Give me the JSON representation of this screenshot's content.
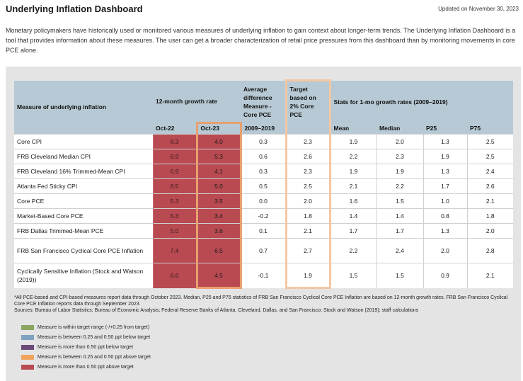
{
  "header": {
    "title": "Underlying Inflation Dashboard",
    "updated": "Updated on November 30, 2023"
  },
  "intro": "Monetary policymakers have historically used or monitored various measures of underlying inflation to gain context about longer-term trends. The Underlying Inflation Dashboard is a tool that provides information about these measures. The user can get a broader characterization of retail price pressures from this dashboard than by monitoring movements in core PCE alone.",
  "table": {
    "col_measure": "Measure of underlying inflation",
    "col_growth": "12-month growth rate",
    "col_avgdiff": "Average difference Measure - Core PCE",
    "col_target": "Target based on 2% Core PCE",
    "col_stats": "Stats for 1-mo growth rates (2009–2019)",
    "sub_oct22": "Oct-22",
    "sub_oct23": "Oct-23",
    "sub_period": "2009–2019",
    "sub_mean": "Mean",
    "sub_median": "Median",
    "sub_p25": "P25",
    "sub_p75": "P75",
    "rows": [
      {
        "name": "Core CPI",
        "oct22": "6.3",
        "oct23": "4.0",
        "avg": "0.3",
        "target": "2.3",
        "mean": "1.9",
        "median": "2.0",
        "p25": "1.3",
        "p75": "2.5"
      },
      {
        "name": "FRB Cleveland Median CPI",
        "oct22": "6.9",
        "oct23": "5.3",
        "avg": "0.6",
        "target": "2.6",
        "mean": "2.2",
        "median": "2.3",
        "p25": "1.9",
        "p75": "2.5"
      },
      {
        "name": "FRB Cleveland 16% Trimmed-Mean CPI",
        "oct22": "6.9",
        "oct23": "4.1",
        "avg": "0.3",
        "target": "2.3",
        "mean": "1.9",
        "median": "1.9",
        "p25": "1.3",
        "p75": "2.4"
      },
      {
        "name": "Atlanta Fed Sticky CPI",
        "oct22": "6.5",
        "oct23": "5.0",
        "avg": "0.5",
        "target": "2.5",
        "mean": "2.1",
        "median": "2.2",
        "p25": "1.7",
        "p75": "2.6"
      },
      {
        "name": "Core PCE",
        "oct22": "5.3",
        "oct23": "3.5",
        "avg": "0.0",
        "target": "2.0",
        "mean": "1.6",
        "median": "1.5",
        "p25": "1.0",
        "p75": "2.1"
      },
      {
        "name": "Market-Based Core PCE",
        "oct22": "5.3",
        "oct23": "3.4",
        "avg": "-0.2",
        "target": "1.8",
        "mean": "1.4",
        "median": "1.4",
        "p25": "0.8",
        "p75": "1.8"
      },
      {
        "name": "FRB Dallas Trimmed-Mean PCE",
        "oct22": "5.0",
        "oct23": "3.6",
        "avg": "0.1",
        "target": "2.1",
        "mean": "1.7",
        "median": "1.7",
        "p25": "1.3",
        "p75": "2.0"
      },
      {
        "name": "FRB San Francisco Cyclical Core PCE Inflation",
        "oct22": "7.4",
        "oct23": "6.5",
        "avg": "0.7",
        "target": "2.7",
        "mean": "2.2",
        "median": "2.4",
        "p25": "2.0",
        "p75": "2.8"
      },
      {
        "name": "Cyclically Sensitive Inflation (Stock and Watson (2019))",
        "oct22": "6.6",
        "oct23": "4.5",
        "avg": "-0.1",
        "target": "1.9",
        "mean": "1.5",
        "median": "1.5",
        "p25": "0.9",
        "p75": "2.1"
      }
    ]
  },
  "notes": {
    "footnote": "*All PCE-based and CPI-based measures report data through October 2023. Median, P25 and P75 statistics of FRB San Francisco Cyclical Core PCE Inflation are based on 12-month growth rates. FRB San Francisco Cyclical Core PCE Inflation reports data through September 2023.",
    "sources": "Sources: Bureau of Labor Statistics; Bureau of Economic Analysis; Federal Reserve Banks of Atlanta, Cleveland, Dallas, and San Francisco; Stock and Watson (2019); staff calculations"
  },
  "legend": [
    {
      "label": "Measure is within target range (-/+0.25 from target)",
      "color": "#8aa661"
    },
    {
      "label": "Measure is between 0.25 and 0.50 ppt below target",
      "color": "#7fa3c0"
    },
    {
      "label": "Measure is more than 0.50 ppt below target",
      "color": "#6b4a78"
    },
    {
      "label": "Measure is between 0.25 and 0.50 ppt above target",
      "color": "#f0a45e"
    },
    {
      "label": "Measure is more than 0.50 ppt above target",
      "color": "#b94a52"
    }
  ]
}
